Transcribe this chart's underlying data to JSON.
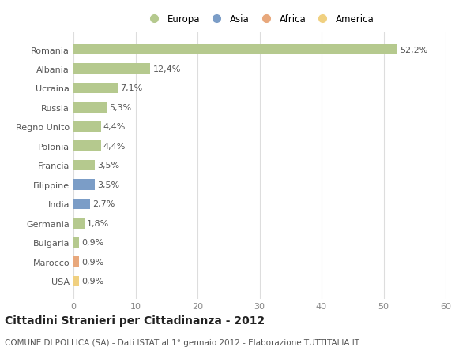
{
  "categories": [
    "Romania",
    "Albania",
    "Ucraina",
    "Russia",
    "Regno Unito",
    "Polonia",
    "Francia",
    "Filippine",
    "India",
    "Germania",
    "Bulgaria",
    "Marocco",
    "USA"
  ],
  "values": [
    52.2,
    12.4,
    7.1,
    5.3,
    4.4,
    4.4,
    3.5,
    3.5,
    2.7,
    1.8,
    0.9,
    0.9,
    0.9
  ],
  "labels": [
    "52,2%",
    "12,4%",
    "7,1%",
    "5,3%",
    "4,4%",
    "4,4%",
    "3,5%",
    "3,5%",
    "2,7%",
    "1,8%",
    "0,9%",
    "0,9%",
    "0,9%"
  ],
  "continents": [
    "Europa",
    "Europa",
    "Europa",
    "Europa",
    "Europa",
    "Europa",
    "Europa",
    "Asia",
    "Asia",
    "Europa",
    "Europa",
    "Africa",
    "America"
  ],
  "colors": {
    "Europa": "#b5c98e",
    "Asia": "#7b9dc7",
    "Africa": "#e8a87c",
    "America": "#f0d080"
  },
  "legend_order": [
    "Europa",
    "Asia",
    "Africa",
    "America"
  ],
  "legend_colors": [
    "#b5c98e",
    "#7b9dc7",
    "#e8a87c",
    "#f0d080"
  ],
  "xlim": [
    0,
    60
  ],
  "xticks": [
    0,
    10,
    20,
    30,
    40,
    50,
    60
  ],
  "title": "Cittadini Stranieri per Cittadinanza - 2012",
  "subtitle": "COMUNE DI POLLICA (SA) - Dati ISTAT al 1° gennaio 2012 - Elaborazione TUTTITALIA.IT",
  "background_color": "#ffffff",
  "grid_color": "#dddddd",
  "bar_height": 0.55,
  "label_fontsize": 8,
  "tick_fontsize": 8,
  "title_fontsize": 10,
  "subtitle_fontsize": 7.5
}
